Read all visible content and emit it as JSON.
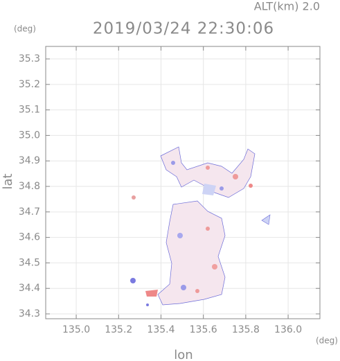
{
  "chart_data": {
    "type": "radar",
    "title": "2019/03/24 22:30:06",
    "subtitle": "ALT(km) 2.0",
    "x_label": "lon",
    "x_unit": "(deg)",
    "y_label": "lat",
    "y_unit": "(deg)",
    "xlim": [
      134.856,
      136.15
    ],
    "ylim": [
      34.281,
      35.349
    ],
    "xticks": [
      {
        "value": 135,
        "label": "135.0"
      },
      135.2,
      135.4,
      135.6,
      135.8,
      {
        "value": 136,
        "label": "136.0"
      }
    ],
    "yticks": [
      34.3,
      34.4,
      34.5,
      34.6,
      34.7,
      34.8,
      34.9,
      {
        "value": 35,
        "label": "35.0"
      },
      35.1,
      35.2,
      35.3
    ],
    "grid": true
  }
}
